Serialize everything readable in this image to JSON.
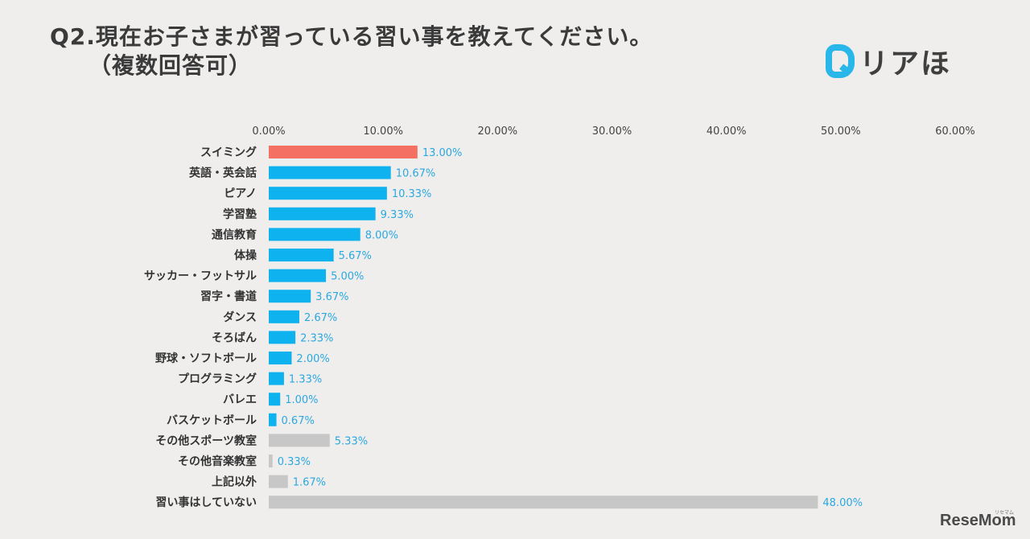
{
  "title": {
    "line1": "Q2.現在お子さまが習っている習い事を教えてください。",
    "line2": "（複数回答可）"
  },
  "logo": {
    "text": "リアほ",
    "mark_icon": "r-logo-icon"
  },
  "credit": {
    "text": "ReseMom",
    "kana": "リセマム"
  },
  "colors": {
    "highlight": "#f37063",
    "primary": "#0db2ee",
    "other": "#c7c7c7",
    "value_text": "#2aa8e0",
    "label_text": "#333333"
  },
  "chart_data": {
    "type": "bar",
    "orientation": "horizontal",
    "title": "Q2.現在お子さまが習っている習い事を教えてください。（複数回答可）",
    "xlim": [
      0,
      60
    ],
    "x_ticks": [
      "0.00%",
      "10.00%",
      "20.00%",
      "30.00%",
      "40.00%",
      "50.00%",
      "60.00%"
    ],
    "x_tick_values": [
      0,
      10,
      20,
      30,
      40,
      50,
      60
    ],
    "grid": false,
    "categories": [
      "スイミング",
      "英語・英会話",
      "ピアノ",
      "学習塾",
      "通信教育",
      "体操",
      "サッカー・フットサル",
      "習字・書道",
      "ダンス",
      "そろばん",
      "野球・ソフトボール",
      "プログラミング",
      "バレエ",
      "バスケットボール",
      "その他スポーツ教室",
      "その他音楽教室",
      "上記以外",
      "習い事はしていない"
    ],
    "values": [
      13.0,
      10.67,
      10.33,
      9.33,
      8.0,
      5.67,
      5.0,
      3.67,
      2.67,
      2.33,
      2.0,
      1.33,
      1.0,
      0.67,
      5.33,
      0.33,
      1.67,
      48.0
    ],
    "value_labels": [
      "13.00%",
      "10.67%",
      "10.33%",
      "9.33%",
      "8.00%",
      "5.67%",
      "5.00%",
      "3.67%",
      "2.67%",
      "2.33%",
      "2.00%",
      "1.33%",
      "1.00%",
      "0.67%",
      "5.33%",
      "0.33%",
      "1.67%",
      "48.00%"
    ],
    "bar_color_groups": [
      "highlight",
      "primary",
      "primary",
      "primary",
      "primary",
      "primary",
      "primary",
      "primary",
      "primary",
      "primary",
      "primary",
      "primary",
      "primary",
      "primary",
      "other",
      "other",
      "other",
      "other"
    ]
  }
}
